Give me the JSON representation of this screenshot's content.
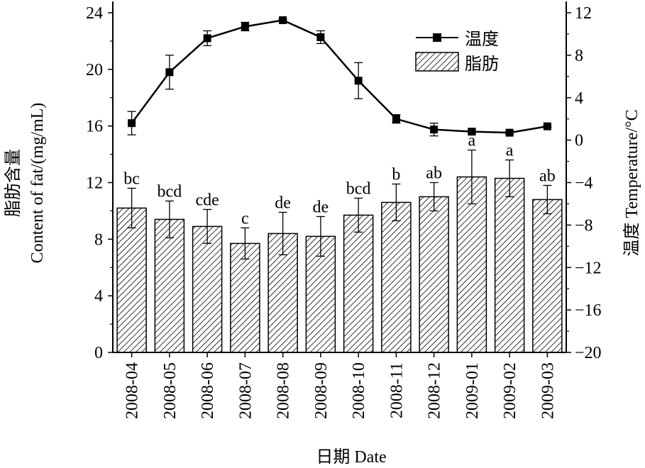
{
  "chart_data": {
    "type": "bar",
    "xlabel": "日期 Date",
    "ylabel_left_cn": "脂肪含量",
    "ylabel_left_en": "Content of  fat/(mg/mL)",
    "ylabel_right": "温度 Temperature/°C",
    "categories": [
      "2008-04",
      "2008-05",
      "2008-06",
      "2008-07",
      "2008-08",
      "2008-09",
      "2008-10",
      "2008-11",
      "2008-12",
      "2009-01",
      "2009-02",
      "2009-03"
    ],
    "ylim_left": [
      0,
      24
    ],
    "yticks_left": [
      "0",
      "4",
      "8",
      "12",
      "16",
      "20",
      "24"
    ],
    "ylim_right": [
      -20,
      12
    ],
    "yticks_right": [
      "−20",
      "−16",
      "−12",
      "−8",
      "−4",
      "0",
      "4",
      "8",
      "12"
    ],
    "series": [
      {
        "name": "脂肪",
        "type": "bar",
        "axis": "left",
        "values": [
          10.2,
          9.4,
          8.9,
          7.7,
          8.4,
          8.2,
          9.7,
          10.6,
          11.0,
          12.4,
          12.3,
          10.8
        ],
        "errors": [
          1.4,
          1.3,
          1.2,
          1.1,
          1.5,
          1.4,
          1.2,
          1.3,
          1.0,
          1.9,
          1.3,
          1.0
        ],
        "labels": [
          "bc",
          "bcd",
          "cde",
          "c",
          "de",
          "de",
          "bcd",
          "b",
          "ab",
          "a",
          "a",
          "ab"
        ]
      },
      {
        "name": "温度",
        "type": "line",
        "axis": "right",
        "values": [
          1.6,
          6.4,
          9.6,
          10.7,
          11.3,
          9.7,
          5.6,
          2.0,
          1.0,
          0.8,
          0.7,
          1.3
        ],
        "errors": [
          1.1,
          1.6,
          0.7,
          0.4,
          0.1,
          0.6,
          1.7,
          0.4,
          0.6,
          0.2,
          0.1,
          0.1
        ]
      }
    ],
    "legend_position": "top-right",
    "grid": false
  }
}
